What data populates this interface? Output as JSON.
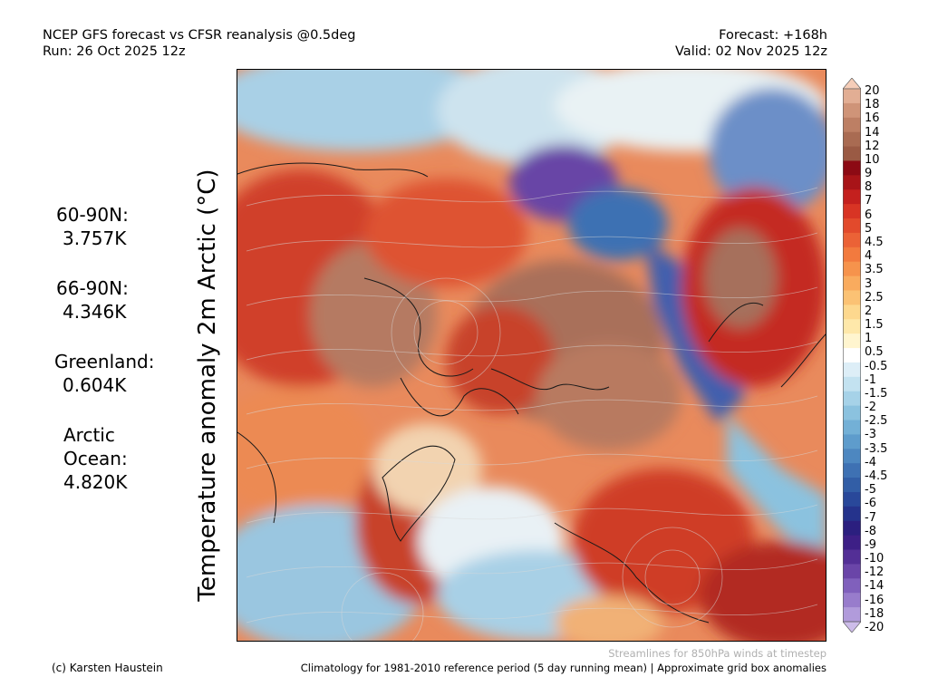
{
  "header": {
    "title": "NCEP GFS forecast vs CFSR reanalysis @0.5deg",
    "run": "Run: 26 Oct 2025 12z",
    "forecast": "Forecast: +168h",
    "valid": "Valid: 02 Nov 2025 12z"
  },
  "ylabel": "Temperature anomaly 2m Arctic (°C)",
  "stats": [
    {
      "label": "60-90N:",
      "value": "3.757K"
    },
    {
      "label": "66-90N:",
      "value": "4.346K"
    },
    {
      "label": "Greenland:",
      "value": "0.604K"
    },
    {
      "label_line1": "Arctic",
      "label_line2": "Ocean:",
      "value": "4.820K"
    }
  ],
  "colorbar": {
    "labels": [
      "20",
      "18",
      "16",
      "14",
      "12",
      "10",
      "9",
      "8",
      "7",
      "6",
      "5",
      "4.5",
      "4",
      "3.5",
      "3",
      "2.5",
      "2",
      "1.5",
      "1",
      "0.5",
      "-0.5",
      "-1",
      "-1.5",
      "-2",
      "-2.5",
      "-3",
      "-3.5",
      "-4",
      "-4.5",
      "-5",
      "-6",
      "-7",
      "-8",
      "-9",
      "-10",
      "-12",
      "-14",
      "-16",
      "-18",
      "-20"
    ],
    "colors": [
      "#f5cdb8",
      "#e2ae94",
      "#cf9478",
      "#bd7f64",
      "#a96b52",
      "#9a5a44",
      "#8c0a14",
      "#a81418",
      "#c4201e",
      "#d83424",
      "#e24a2c",
      "#eb6236",
      "#f27a3e",
      "#f6934c",
      "#f9ab5e",
      "#fbc274",
      "#fdd88e",
      "#fee8aa",
      "#fff5cf",
      "#ffffff",
      "#ddeef7",
      "#c3e2f0",
      "#a6d2e8",
      "#8bc2df",
      "#73b0d6",
      "#5e9ccc",
      "#4d87c0",
      "#3e71b3",
      "#325ea6",
      "#29489a",
      "#25338c",
      "#2b1f7f",
      "#3d1f86",
      "#532f96",
      "#6a45a8",
      "#8060bc",
      "#987ccc",
      "#b19bdb",
      "#cdbce9"
    ]
  },
  "notes": {
    "streamlines": "Streamlines for 850hPa winds at timestep",
    "credit": "(c) Karsten Haustein",
    "climatology": "Climatology for 1981-2010 reference period (5 day running mean) | Approximate grid box anomalies"
  }
}
